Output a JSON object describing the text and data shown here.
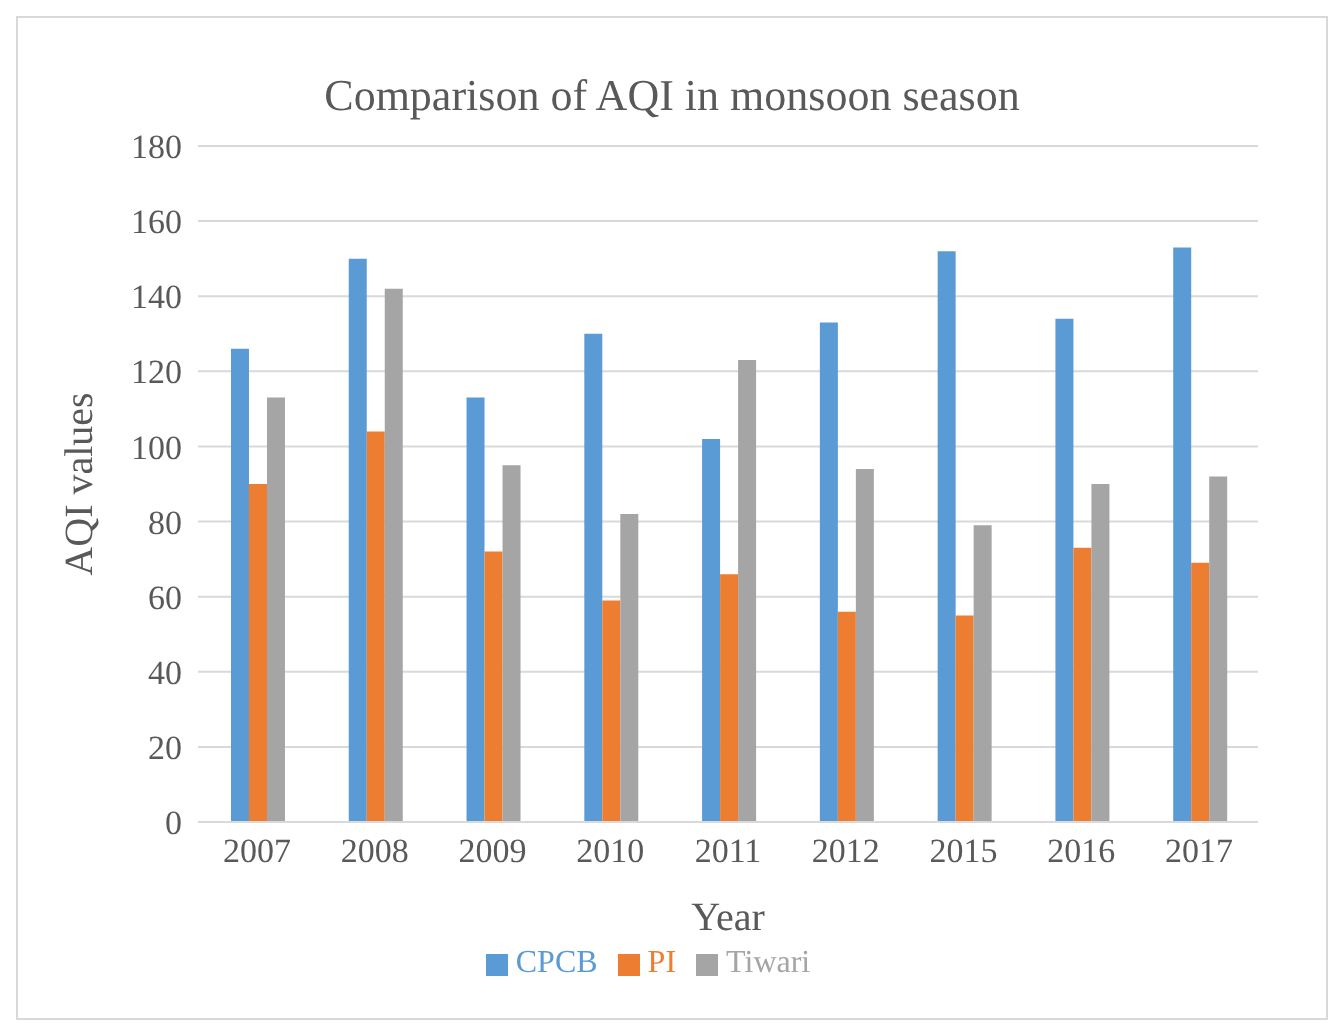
{
  "chart_data": {
    "type": "bar",
    "title": "Comparison of AQI in monsoon season",
    "xlabel": "Year",
    "ylabel": "AQI values",
    "categories": [
      "2007",
      "2008",
      "2009",
      "2010",
      "2011",
      "2012",
      "2015",
      "2016",
      "2017"
    ],
    "series": [
      {
        "name": "CPCB",
        "color": "#5b9bd5",
        "values": [
          126,
          150,
          113,
          130,
          102,
          133,
          152,
          134,
          153
        ]
      },
      {
        "name": "PI",
        "color": "#ed7d31",
        "values": [
          90,
          104,
          72,
          59,
          66,
          56,
          55,
          73,
          69
        ]
      },
      {
        "name": "Tiwari",
        "color": "#a5a5a5",
        "values": [
          113,
          142,
          95,
          82,
          123,
          94,
          79,
          90,
          92
        ]
      }
    ],
    "ylim": [
      0,
      180
    ],
    "yticks": [
      0,
      20,
      40,
      60,
      80,
      100,
      120,
      140,
      160,
      180
    ],
    "grid": "y",
    "legend": "bottom"
  }
}
